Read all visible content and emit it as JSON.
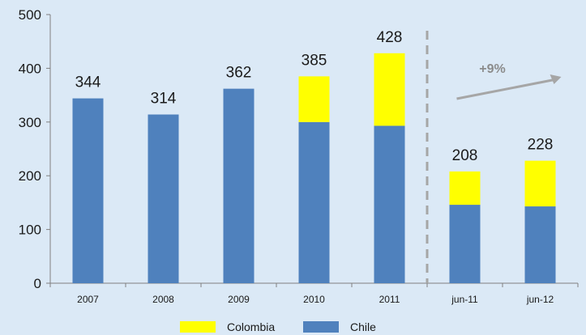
{
  "chart_data": {
    "type": "bar",
    "stacked": true,
    "categories": [
      "2007",
      "2008",
      "2009",
      "2010",
      "2011",
      "jun-11",
      "jun-12"
    ],
    "series": [
      {
        "name": "Chile",
        "color": "#4f81bd",
        "values": [
          344,
          314,
          362,
          300,
          293,
          146,
          143
        ]
      },
      {
        "name": "Colombia",
        "color": "#ffff00",
        "values": [
          0,
          0,
          0,
          85,
          135,
          62,
          85
        ]
      }
    ],
    "totals": [
      344,
      314,
      362,
      385,
      428,
      208,
      228
    ],
    "ylim": [
      0,
      500
    ],
    "yticks": [
      0,
      100,
      200,
      300,
      400,
      500
    ],
    "grid": false,
    "legend_position": "bottom",
    "divider_after_category": "2011",
    "annotation": {
      "text": "+9%",
      "icon": "trend-up-arrow-icon"
    },
    "title": "",
    "xlabel": "",
    "ylabel": ""
  },
  "legend": {
    "items": [
      {
        "name": "Colombia",
        "color": "#ffff00"
      },
      {
        "name": "Chile",
        "color": "#4f81bd"
      }
    ]
  }
}
